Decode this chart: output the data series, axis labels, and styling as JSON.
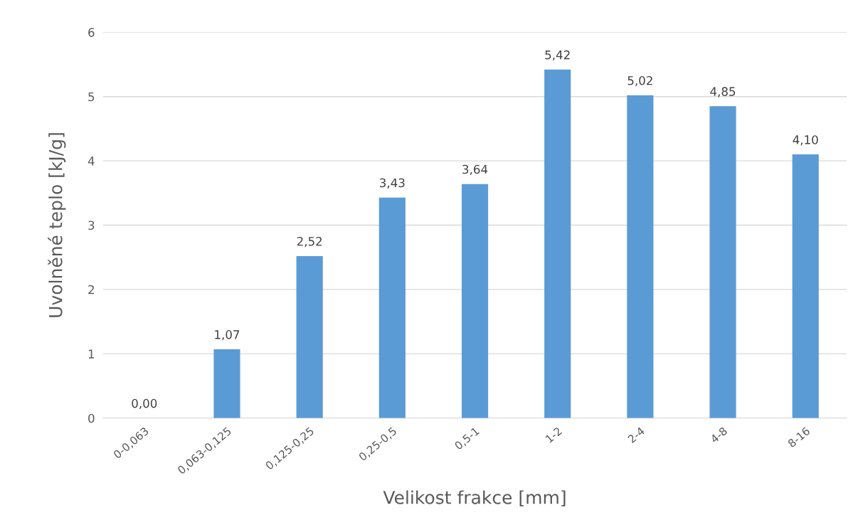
{
  "chart_data": {
    "type": "bar",
    "xlabel": "Velikost frakce [mm]",
    "ylabel": "Uvolněné teplo [kJ/g]",
    "categories": [
      "0-0,063",
      "0,063-0,125",
      "0,125-0,25",
      "0,25-0,5",
      "0,5-1",
      "1-2",
      "2-4",
      "4-8",
      "8-16"
    ],
    "values": [
      0.0,
      1.07,
      2.52,
      3.43,
      3.64,
      5.42,
      5.02,
      4.85,
      4.1
    ],
    "value_labels": [
      "0,00",
      "1,07",
      "2,52",
      "3,43",
      "3,64",
      "5,42",
      "5,02",
      "4,85",
      "4,10"
    ],
    "color": "#5b9bd5",
    "ylim": [
      0,
      6
    ],
    "yticks": [
      0,
      1,
      2,
      3,
      4,
      5,
      6
    ],
    "grid": "y"
  }
}
